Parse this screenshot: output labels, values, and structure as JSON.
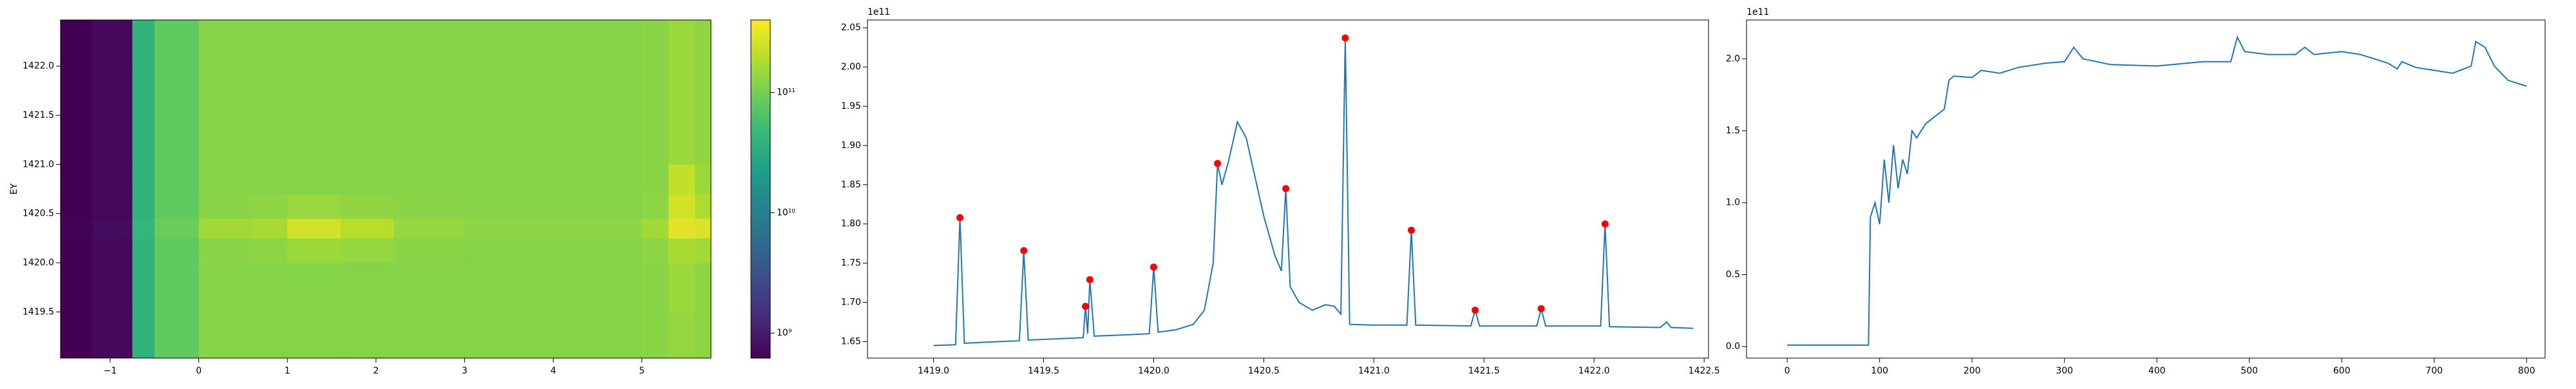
{
  "chart_data": [
    {
      "type": "heatmap",
      "ylabel": "EY",
      "x_edges": [
        -1.56,
        -1.2,
        -0.75,
        -0.5,
        0,
        0.6,
        1.0,
        1.6,
        2.2,
        3,
        4,
        5.0,
        5.3,
        5.6,
        5.78
      ],
      "y_edges": [
        1419.03,
        1419.5,
        1420.0,
        1420.25,
        1420.45,
        1420.7,
        1421.0,
        1421.5,
        1422.0,
        1422.47
      ],
      "z": [
        [
          600000000.0,
          700000000.0,
          40000000000.0,
          80000000000.0,
          120000000000.0,
          120000000000.0,
          120000000000.0,
          120000000000.0,
          120000000000.0,
          120000000000.0,
          120000000000.0,
          125000000000.0,
          140000000000.0,
          130000000000.0
        ],
        [
          600000000.0,
          700000000.0,
          40000000000.0,
          80000000000.0,
          120000000000.0,
          120000000000.0,
          120000000000.0,
          120000000000.0,
          120000000000.0,
          120000000000.0,
          120000000000.0,
          125000000000.0,
          150000000000.0,
          130000000000.0
        ],
        [
          600000000.0,
          700000000.0,
          40000000000.0,
          80000000000.0,
          125000000000.0,
          130000000000.0,
          150000000000.0,
          140000000000.0,
          125000000000.0,
          120000000000.0,
          120000000000.0,
          130000000000.0,
          170000000000.0,
          160000000000.0
        ],
        [
          650000000.0,
          750000000.0,
          45000000000.0,
          90000000000.0,
          160000000000.0,
          170000000000.0,
          260000000000.0,
          200000000000.0,
          140000000000.0,
          130000000000.0,
          130000000000.0,
          160000000000.0,
          300000000000.0,
          280000000000.0
        ],
        [
          600000000.0,
          700000000.0,
          40000000000.0,
          80000000000.0,
          125000000000.0,
          130000000000.0,
          145000000000.0,
          135000000000.0,
          125000000000.0,
          120000000000.0,
          120000000000.0,
          130000000000.0,
          260000000000.0,
          180000000000.0
        ],
        [
          600000000.0,
          700000000.0,
          40000000000.0,
          80000000000.0,
          120000000000.0,
          120000000000.0,
          120000000000.0,
          120000000000.0,
          120000000000.0,
          120000000000.0,
          120000000000.0,
          125000000000.0,
          220000000000.0,
          150000000000.0
        ],
        [
          600000000.0,
          700000000.0,
          40000000000.0,
          80000000000.0,
          120000000000.0,
          120000000000.0,
          120000000000.0,
          120000000000.0,
          120000000000.0,
          120000000000.0,
          120000000000.0,
          125000000000.0,
          150000000000.0,
          135000000000.0
        ],
        [
          600000000.0,
          700000000.0,
          40000000000.0,
          80000000000.0,
          120000000000.0,
          120000000000.0,
          120000000000.0,
          120000000000.0,
          120000000000.0,
          120000000000.0,
          120000000000.0,
          125000000000.0,
          150000000000.0,
          135000000000.0
        ],
        [
          600000000.0,
          700000000.0,
          40000000000.0,
          80000000000.0,
          120000000000.0,
          120000000000.0,
          120000000000.0,
          120000000000.0,
          120000000000.0,
          120000000000.0,
          120000000000.0,
          125000000000.0,
          150000000000.0,
          135000000000.0
        ]
      ],
      "xlim": [
        -1.56,
        5.78
      ],
      "ylim": [
        1419.03,
        1422.47
      ],
      "xticks": [
        {
          "value": -1,
          "label": "−1"
        },
        0,
        1,
        2,
        3,
        4,
        5
      ],
      "yticks": [
        1419.5,
        {
          "value": 1420,
          "label": "1420.0"
        },
        1420.5,
        {
          "value": 1421,
          "label": "1421.0"
        },
        1421.5,
        {
          "value": 1422,
          "label": "1422.0"
        }
      ],
      "colormap": "viridis",
      "colorbar": {
        "scale": "log",
        "lim": [
          620000000.0,
          400000000000.0
        ],
        "ticks": [
          {
            "value": 1000000000.0,
            "label": "10⁹"
          },
          {
            "value": 10000000000.0,
            "label": "10¹⁰"
          },
          {
            "value": 100000000000.0,
            "label": "10¹¹"
          }
        ]
      }
    },
    {
      "type": "line",
      "offset_text": "1e11",
      "line": {
        "color": "#1f77b4",
        "x": [
          1419.0,
          1419.1,
          1419.12,
          1419.14,
          1419.3,
          1419.39,
          1419.41,
          1419.43,
          1419.6,
          1419.68,
          1419.69,
          1419.7,
          1419.71,
          1419.73,
          1419.9,
          1419.98,
          1420.0,
          1420.02,
          1420.1,
          1420.18,
          1420.23,
          1420.27,
          1420.29,
          1420.31,
          1420.34,
          1420.38,
          1420.42,
          1420.46,
          1420.5,
          1420.55,
          1420.58,
          1420.6,
          1420.62,
          1420.66,
          1420.72,
          1420.78,
          1420.82,
          1420.85,
          1420.87,
          1420.89,
          1421.0,
          1421.15,
          1421.17,
          1421.19,
          1421.44,
          1421.46,
          1421.48,
          1421.74,
          1421.76,
          1421.78,
          1422.03,
          1422.05,
          1422.07,
          1422.3,
          1422.33,
          1422.35,
          1422.45
        ],
        "values": [
          1.645,
          1.646,
          1.808,
          1.648,
          1.65,
          1.651,
          1.766,
          1.652,
          1.654,
          1.655,
          1.695,
          1.66,
          1.729,
          1.657,
          1.659,
          1.66,
          1.745,
          1.662,
          1.665,
          1.672,
          1.69,
          1.75,
          1.877,
          1.85,
          1.88,
          1.93,
          1.91,
          1.86,
          1.81,
          1.76,
          1.74,
          1.845,
          1.72,
          1.7,
          1.69,
          1.697,
          1.695,
          1.685,
          2.037,
          1.672,
          1.671,
          1.671,
          1.792,
          1.671,
          1.67,
          1.69,
          1.67,
          1.67,
          1.692,
          1.67,
          1.67,
          1.8,
          1.669,
          1.668,
          1.675,
          1.668,
          1.667
        ]
      },
      "peaks": {
        "color": "#ff0000",
        "x": [
          1419.12,
          1419.41,
          1419.69,
          1419.71,
          1420.0,
          1420.29,
          1420.6,
          1420.87,
          1421.17,
          1421.46,
          1421.76,
          1422.05
        ],
        "values": [
          1.808,
          1.766,
          1.695,
          1.729,
          1.745,
          1.877,
          1.845,
          2.037,
          1.792,
          1.69,
          1.692,
          1.8
        ]
      },
      "xlim": [
        1418.7,
        1422.52
      ],
      "ylim": [
        1.629,
        2.06
      ],
      "xticks": [
        {
          "value": 1419,
          "label": "1419.0"
        },
        1419.5,
        {
          "value": 1420,
          "label": "1420.0"
        },
        1420.5,
        {
          "value": 1421,
          "label": "1421.0"
        },
        1421.5,
        {
          "value": 1422,
          "label": "1422.0"
        },
        1422.5
      ],
      "yticks": [
        1.65,
        {
          "value": 1.7,
          "label": "1.70"
        },
        1.75,
        {
          "value": 1.8,
          "label": "1.80"
        },
        1.85,
        {
          "value": 1.9,
          "label": "1.90"
        },
        1.95,
        {
          "value": 2,
          "label": "2.00"
        },
        2.05
      ]
    },
    {
      "type": "line",
      "offset_text": "1e11",
      "line": {
        "color": "#1f77b4",
        "x": [
          0,
          88,
          90,
          95,
          100,
          105,
          110,
          115,
          120,
          125,
          130,
          135,
          140,
          150,
          160,
          170,
          175,
          180,
          200,
          210,
          230,
          250,
          280,
          300,
          310,
          320,
          350,
          400,
          450,
          480,
          487,
          495,
          520,
          550,
          560,
          570,
          600,
          620,
          650,
          660,
          665,
          680,
          700,
          720,
          740,
          745,
          755,
          765,
          780,
          795,
          800
        ],
        "values": [
          0.01,
          0.01,
          0.9,
          1.0,
          0.85,
          1.3,
          1.0,
          1.4,
          1.1,
          1.3,
          1.2,
          1.5,
          1.45,
          1.55,
          1.6,
          1.65,
          1.85,
          1.88,
          1.87,
          1.92,
          1.9,
          1.94,
          1.97,
          1.98,
          2.08,
          2.0,
          1.96,
          1.95,
          1.98,
          1.98,
          2.15,
          2.05,
          2.03,
          2.03,
          2.08,
          2.03,
          2.05,
          2.03,
          1.97,
          1.93,
          1.98,
          1.94,
          1.92,
          1.9,
          1.95,
          2.12,
          2.08,
          1.95,
          1.85,
          1.82,
          1.81
        ]
      },
      "xlim": [
        -44,
        820
      ],
      "ylim": [
        -0.08,
        2.27
      ],
      "xticks": [
        0,
        100,
        200,
        300,
        400,
        500,
        600,
        700,
        800
      ],
      "yticks": [
        {
          "value": 0,
          "label": "0.0"
        },
        0.5,
        {
          "value": 1,
          "label": "1.0"
        },
        1.5,
        {
          "value": 2,
          "label": "2.0"
        }
      ]
    }
  ]
}
